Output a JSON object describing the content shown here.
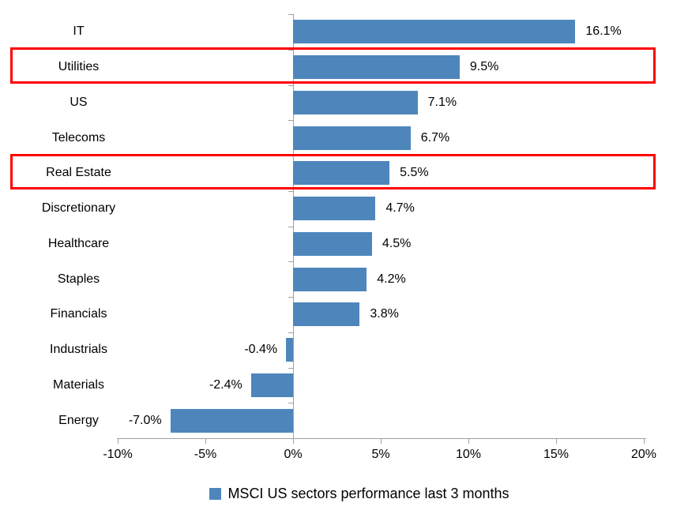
{
  "chart_data": {
    "type": "bar",
    "orientation": "horizontal",
    "title": "",
    "categories": [
      "IT",
      "Utilities",
      "US",
      "Telecoms",
      "Real Estate",
      "Discretionary",
      "Healthcare",
      "Staples",
      "Financials",
      "Industrials",
      "Materials",
      "Energy"
    ],
    "values": [
      16.1,
      9.5,
      7.1,
      6.7,
      5.5,
      4.7,
      4.5,
      4.2,
      3.8,
      -0.4,
      -2.4,
      -7.0
    ],
    "value_labels": [
      "16.1%",
      "9.5%",
      "7.1%",
      "6.7%",
      "5.5%",
      "4.7%",
      "4.5%",
      "4.2%",
      "3.8%",
      "-0.4%",
      "-2.4%",
      "-7.0%"
    ],
    "highlighted_categories": [
      "Utilities",
      "Real Estate"
    ],
    "x_axis": {
      "min": -10,
      "max": 20,
      "tick_values": [
        -10,
        -5,
        0,
        5,
        10,
        15,
        20
      ],
      "tick_labels": [
        "-10%",
        "-5%",
        "0%",
        "5%",
        "10%",
        "15%",
        "20%"
      ]
    },
    "grid": "off",
    "legend": {
      "position": "bottom",
      "label": "MSCI US sectors performance last 3 months"
    },
    "colors": {
      "bar": "#4E86BC",
      "highlight_box": "#FF0000",
      "axis": "#A0A0A0",
      "text": "#000000"
    }
  }
}
